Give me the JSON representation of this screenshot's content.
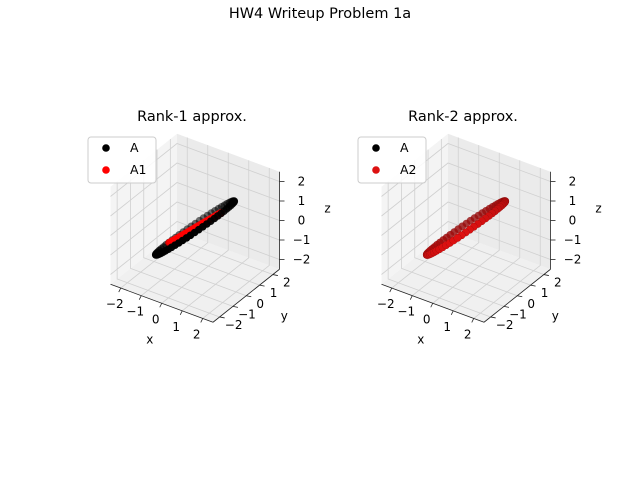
{
  "figure": {
    "title": "HW4 Writeup Problem 1a"
  },
  "colors": {
    "A": "#000000",
    "approx": "#ff0000",
    "pane": "#f2f2f2",
    "grid": "#cfcfcf"
  },
  "chart_data": [
    {
      "type": "scatter",
      "title": "Rank-1 approx.",
      "xlabel": "x",
      "ylabel": "y",
      "zlabel": "z",
      "xticks": [
        "−2",
        "−1",
        "0",
        "1",
        "2"
      ],
      "yticks": [
        "−2",
        "−1",
        "0",
        "1",
        "2"
      ],
      "zticks": [
        "2",
        "1",
        "0",
        "−1",
        "−2"
      ],
      "xlim": [
        -2,
        2
      ],
      "ylim": [
        -2,
        2
      ],
      "zlim": [
        -2,
        2
      ],
      "legend": {
        "position": "top-left",
        "entries": [
          "A",
          "A1"
        ]
      },
      "series": [
        {
          "name": "A",
          "color": "#000000",
          "shape": "circle",
          "points": 60,
          "radius": 2,
          "tilt_deg": 45
        },
        {
          "name": "A1",
          "color": "#ff0000",
          "shape": "line",
          "points": 60,
          "range": [
            -1.8,
            1.8
          ],
          "tilt_deg": 45
        }
      ]
    },
    {
      "type": "scatter",
      "title": "Rank-2 approx.",
      "xlabel": "x",
      "ylabel": "y",
      "zlabel": "z",
      "xticks": [
        "−2",
        "−1",
        "0",
        "1",
        "2"
      ],
      "yticks": [
        "−2",
        "−1",
        "0",
        "1",
        "2"
      ],
      "zticks": [
        "2",
        "1",
        "0",
        "−1",
        "−2"
      ],
      "xlim": [
        -2,
        2
      ],
      "ylim": [
        -2,
        2
      ],
      "zlim": [
        -2,
        2
      ],
      "legend": {
        "position": "top-left",
        "entries": [
          "A",
          "A2"
        ]
      },
      "series": [
        {
          "name": "A",
          "color": "#000000",
          "shape": "circle",
          "points": 60,
          "radius": 2,
          "tilt_deg": 45
        },
        {
          "name": "A2",
          "color": "#dd1111",
          "shape": "circle",
          "points": 60,
          "radius": 2,
          "tilt_deg": 45
        }
      ]
    }
  ]
}
